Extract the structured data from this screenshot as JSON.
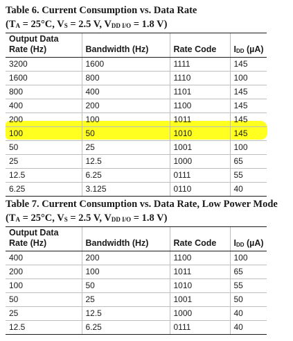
{
  "colors": {
    "highlight": "#ffff20",
    "text": "#1a1a1a",
    "rule": "#bdbdbd"
  },
  "table6": {
    "title": "Table 6. Current Consumption vs. Data Rate",
    "cond_open": "(T",
    "cond_ta_sub": "A",
    "cond_mid1": " = 25°C, V",
    "cond_vs_sub": "S",
    "cond_mid2": " = 2.5 V, V",
    "cond_vdd_sub": "DD I/O",
    "cond_end": " = 1.8 V)",
    "headers": {
      "col1_line1": "Output Data",
      "col1_line2": "Rate (Hz)",
      "col2": "Bandwidth (Hz)",
      "col3": "Rate Code",
      "col4_pre": "I",
      "col4_sub": "DD",
      "col4_post": " (µA)"
    },
    "rows": [
      [
        "3200",
        "1600",
        "1111",
        "145"
      ],
      [
        "1600",
        "800",
        "1110",
        "100"
      ],
      [
        "800",
        "400",
        "1101",
        "145"
      ],
      [
        "400",
        "200",
        "1100",
        "145"
      ],
      [
        "200",
        "100",
        "1011",
        "145"
      ],
      [
        "100",
        "50",
        "1010",
        "145"
      ],
      [
        "50",
        "25",
        "1001",
        "100"
      ],
      [
        "25",
        "12.5",
        "1000",
        "65"
      ],
      [
        "12.5",
        "6.25",
        "0111",
        "55"
      ],
      [
        "6.25",
        "3.125",
        "0110",
        "40"
      ]
    ],
    "highlighted_row": 5
  },
  "table7": {
    "title": "Table 7. Current Consumption vs. Data Rate, Low Power Mode",
    "cond_open": "(T",
    "cond_ta_sub": "A",
    "cond_mid1": " = 25°C, V",
    "cond_vs_sub": "S",
    "cond_mid2": " = 2.5 V, V",
    "cond_vdd_sub": "DD I/O",
    "cond_end": " = 1.8 V)",
    "headers": {
      "col1_line1": "Output Data",
      "col1_line2": "Rate (Hz)",
      "col2": "Bandwidth (Hz)",
      "col3": "Rate Code",
      "col4_pre": "I",
      "col4_sub": "DD",
      "col4_post": " (µA)"
    },
    "rows": [
      [
        "400",
        "200",
        "1100",
        "100"
      ],
      [
        "200",
        "100",
        "1011",
        "65"
      ],
      [
        "100",
        "50",
        "1010",
        "55"
      ],
      [
        "50",
        "25",
        "1001",
        "50"
      ],
      [
        "25",
        "12.5",
        "1000",
        "40"
      ],
      [
        "12.5",
        "6.25",
        "0111",
        "40"
      ]
    ]
  }
}
